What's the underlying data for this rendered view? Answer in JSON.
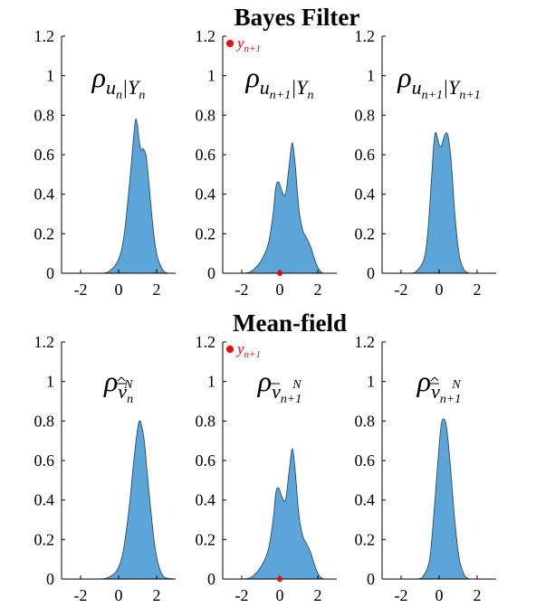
{
  "figure": {
    "row_titles": [
      "Bayes Filter",
      "Mean-field"
    ]
  },
  "colors": {
    "fill": "#5ca5d9",
    "stroke": "#2b4a66",
    "observation": "#ff0000",
    "axis": "#000000"
  },
  "chart_data": [
    {
      "type": "area",
      "title": "ρ_{u_n|Y_n}",
      "title_parts": {
        "base": "ρ",
        "sub": "u",
        "subsub": "n",
        "rest": "|Y",
        "restsub": "n"
      },
      "xlim": [
        -3,
        3
      ],
      "ylim": [
        0,
        1.2
      ],
      "xticks": [
        -2,
        0,
        2
      ],
      "yticks": [
        0,
        0.2,
        0.4,
        0.6,
        0.8,
        1,
        1.2
      ],
      "x": [
        -3.0,
        -1.0,
        -0.5,
        0.0,
        0.3,
        0.6,
        0.8,
        0.9,
        1.0,
        1.1,
        1.2,
        1.3,
        1.45,
        1.6,
        1.8,
        2.0,
        2.3,
        2.6,
        3.0
      ],
      "y": [
        0.0,
        0.0,
        0.01,
        0.07,
        0.2,
        0.48,
        0.7,
        0.78,
        0.74,
        0.66,
        0.62,
        0.63,
        0.59,
        0.45,
        0.24,
        0.1,
        0.02,
        0.0,
        0.0
      ]
    },
    {
      "type": "area",
      "title": "ρ_{u_{n+1}|Y_n}",
      "title_parts": {
        "base": "ρ",
        "sub": "u",
        "subsub": "n+1",
        "rest": "|Y",
        "restsub": "n"
      },
      "xlim": [
        -3,
        3
      ],
      "ylim": [
        0,
        1.2
      ],
      "xticks": [
        -2,
        0,
        2
      ],
      "yticks": [
        0,
        0.2,
        0.4,
        0.6,
        0.8,
        1,
        1.2
      ],
      "x": [
        -3.0,
        -2.0,
        -1.5,
        -1.0,
        -0.6,
        -0.35,
        -0.2,
        -0.05,
        0.1,
        0.3,
        0.5,
        0.65,
        0.8,
        1.0,
        1.2,
        1.4,
        1.6,
        1.8,
        2.0,
        2.3,
        3.0
      ],
      "y": [
        0.0,
        0.0,
        0.01,
        0.06,
        0.15,
        0.3,
        0.44,
        0.46,
        0.42,
        0.4,
        0.55,
        0.66,
        0.56,
        0.33,
        0.22,
        0.18,
        0.14,
        0.08,
        0.03,
        0.0,
        0.0
      ],
      "observation": {
        "x": 0,
        "y": 0,
        "legend": "y_{n+1}",
        "legend_parts": {
          "base": "y",
          "sub": "n+1"
        }
      }
    },
    {
      "type": "area",
      "title": "ρ_{u_{n+1}|Y_{n+1}}",
      "title_parts": {
        "base": "ρ",
        "sub": "u",
        "subsub": "n+1",
        "rest": "|Y",
        "restsub": "n+1"
      },
      "xlim": [
        -3,
        3
      ],
      "ylim": [
        0,
        1.2
      ],
      "xticks": [
        -2,
        0,
        2
      ],
      "yticks": [
        0,
        0.2,
        0.4,
        0.6,
        0.8,
        1,
        1.2
      ],
      "x": [
        -3.0,
        -1.6,
        -1.2,
        -0.8,
        -0.6,
        -0.4,
        -0.3,
        -0.2,
        -0.1,
        0.0,
        0.1,
        0.2,
        0.3,
        0.4,
        0.5,
        0.6,
        0.7,
        0.8,
        1.0,
        1.2,
        1.6,
        3.0
      ],
      "y": [
        0.0,
        0.0,
        0.01,
        0.07,
        0.2,
        0.48,
        0.63,
        0.71,
        0.69,
        0.65,
        0.64,
        0.67,
        0.7,
        0.71,
        0.68,
        0.6,
        0.48,
        0.33,
        0.13,
        0.04,
        0.0,
        0.0
      ]
    },
    {
      "type": "area",
      "title": "ρ_{\\hat{\\bar{v}}_n^N}",
      "title_parts": {
        "base": "ρ",
        "sub": "v",
        "subsub": "n",
        "sup": "N",
        "accent": "hatbar"
      },
      "xlim": [
        -3,
        3
      ],
      "ylim": [
        0,
        1.2
      ],
      "xticks": [
        -2,
        0,
        2
      ],
      "yticks": [
        0,
        0.2,
        0.4,
        0.6,
        0.8,
        1,
        1.2
      ],
      "x": [
        -3.0,
        -1.0,
        -0.5,
        -0.2,
        0.0,
        0.2,
        0.4,
        0.6,
        0.8,
        1.0,
        1.1,
        1.2,
        1.35,
        1.5,
        1.7,
        1.9,
        2.1,
        2.4,
        3.0
      ],
      "y": [
        0.0,
        0.0,
        0.01,
        0.03,
        0.06,
        0.12,
        0.24,
        0.4,
        0.6,
        0.76,
        0.8,
        0.78,
        0.7,
        0.54,
        0.34,
        0.17,
        0.07,
        0.01,
        0.0
      ]
    },
    {
      "type": "area",
      "title": "ρ_{\\bar{v}_{n+1}^N}",
      "title_parts": {
        "base": "ρ",
        "sub": "v",
        "subsub": "n+1",
        "sup": "N",
        "accent": "bar"
      },
      "xlim": [
        -3,
        3
      ],
      "ylim": [
        0,
        1.2
      ],
      "xticks": [
        -2,
        0,
        2
      ],
      "yticks": [
        0,
        0.2,
        0.4,
        0.6,
        0.8,
        1,
        1.2
      ],
      "x": [
        -3.0,
        -2.0,
        -1.5,
        -1.0,
        -0.6,
        -0.35,
        -0.2,
        -0.05,
        0.1,
        0.3,
        0.5,
        0.65,
        0.8,
        1.0,
        1.2,
        1.4,
        1.6,
        1.8,
        2.0,
        2.3,
        3.0
      ],
      "y": [
        0.0,
        0.0,
        0.01,
        0.06,
        0.15,
        0.3,
        0.44,
        0.46,
        0.42,
        0.4,
        0.55,
        0.66,
        0.56,
        0.33,
        0.22,
        0.18,
        0.14,
        0.08,
        0.03,
        0.0,
        0.0
      ],
      "observation": {
        "x": 0,
        "y": 0,
        "legend": "y_{n+1}",
        "legend_parts": {
          "base": "y",
          "sub": "n+1"
        }
      }
    },
    {
      "type": "area",
      "title": "ρ_{\\hat{\\bar{v}}_{n+1}^N}",
      "title_parts": {
        "base": "ρ",
        "sub": "v",
        "subsub": "n+1",
        "sup": "N",
        "accent": "hatbar"
      },
      "xlim": [
        -3,
        3
      ],
      "ylim": [
        0,
        1.2
      ],
      "xticks": [
        -2,
        0,
        2
      ],
      "yticks": [
        0,
        0.2,
        0.4,
        0.6,
        0.8,
        1,
        1.2
      ],
      "x": [
        -3.0,
        -1.2,
        -0.8,
        -0.5,
        -0.3,
        -0.1,
        0.05,
        0.15,
        0.25,
        0.35,
        0.45,
        0.6,
        0.8,
        1.0,
        1.2,
        1.6,
        3.0
      ],
      "y": [
        0.0,
        0.0,
        0.02,
        0.1,
        0.3,
        0.55,
        0.73,
        0.8,
        0.81,
        0.79,
        0.72,
        0.56,
        0.32,
        0.14,
        0.05,
        0.0,
        0.0
      ]
    }
  ]
}
